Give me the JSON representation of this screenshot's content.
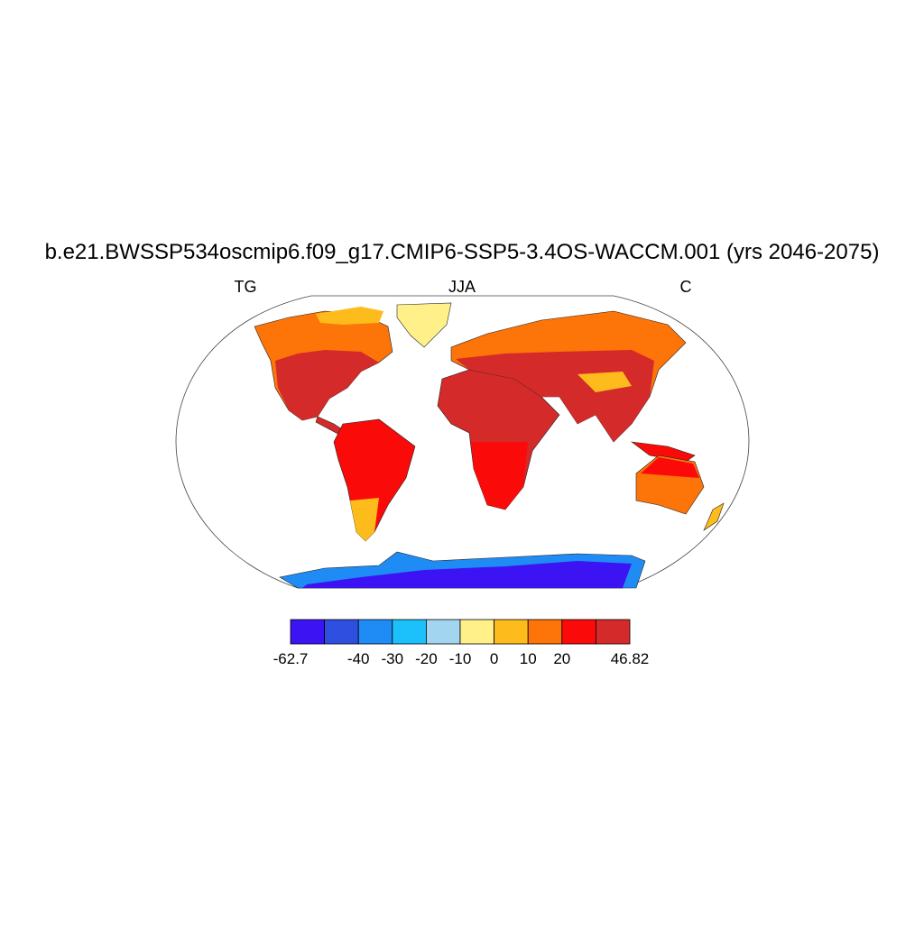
{
  "title": "b.e21.BWSSP534oscmip6.f09_g17.CMIP6-SSP5-3.4OS-WACCM.001 (yrs 2046-2075)",
  "left_label": "TG",
  "center_label": "JJA",
  "right_label": "C",
  "colorbar": {
    "colors": [
      "#3c14f4",
      "#2f4fe0",
      "#1f8cf5",
      "#1cc0fa",
      "#a2d6f0",
      "#fff08a",
      "#fdbc1c",
      "#fd7408",
      "#fb0a0a",
      "#d42a2a"
    ],
    "labels": [
      -62.7,
      null,
      -40,
      -30,
      -20,
      -10,
      0,
      10,
      20,
      null,
      46.82
    ]
  }
}
